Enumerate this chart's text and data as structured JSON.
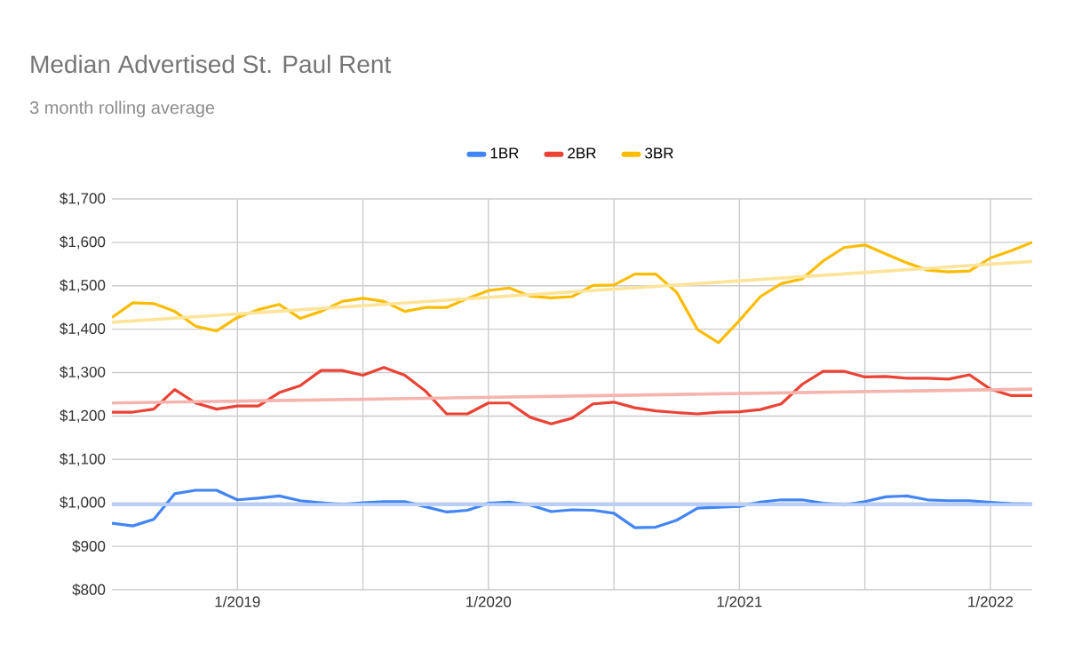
{
  "chart_data": {
    "type": "line",
    "title": "Median Advertised St. Paul Rent",
    "subtitle": "3 month rolling average",
    "x": [
      "2018-07",
      "2018-08",
      "2018-09",
      "2018-10",
      "2018-11",
      "2018-12",
      "2019-01",
      "2019-02",
      "2019-03",
      "2019-04",
      "2019-05",
      "2019-06",
      "2019-07",
      "2019-08",
      "2019-09",
      "2019-10",
      "2019-11",
      "2019-12",
      "2020-01",
      "2020-02",
      "2020-03",
      "2020-04",
      "2020-05",
      "2020-06",
      "2020-07",
      "2020-08",
      "2020-09",
      "2020-10",
      "2020-11",
      "2020-12",
      "2021-01",
      "2021-02",
      "2021-03",
      "2021-04",
      "2021-05",
      "2021-06",
      "2021-07",
      "2021-08",
      "2021-09",
      "2021-10",
      "2021-11",
      "2021-12",
      "2022-01",
      "2022-02",
      "2022-03"
    ],
    "series": [
      {
        "name": "1BR",
        "color": "#4285f4",
        "values": [
          953,
          947,
          962,
          1021,
          1029,
          1029,
          1007,
          1011,
          1016,
          1005,
          1000,
          996,
          1000,
          1003,
          1003,
          991,
          979,
          983,
          999,
          1002,
          995,
          980,
          984,
          983,
          976,
          943,
          944,
          960,
          988,
          990,
          992,
          1002,
          1007,
          1007,
          999,
          995,
          1003,
          1014,
          1016,
          1007,
          1005,
          1005,
          1001,
          998,
          997
        ]
      },
      {
        "name": "2BR",
        "color": "#ea4335",
        "values": [
          1209,
          1209,
          1216,
          1261,
          1230,
          1216,
          1223,
          1223,
          1254,
          1270,
          1305,
          1305,
          1294,
          1312,
          1294,
          1257,
          1205,
          1205,
          1230,
          1230,
          1197,
          1182,
          1195,
          1228,
          1232,
          1219,
          1212,
          1208,
          1205,
          1209,
          1210,
          1215,
          1228,
          1273,
          1303,
          1303,
          1290,
          1291,
          1287,
          1287,
          1285,
          1295,
          1262,
          1247,
          1247
        ]
      },
      {
        "name": "3BR",
        "color": "#fbbc04",
        "values": [
          1427,
          1461,
          1459,
          1441,
          1407,
          1396,
          1427,
          1445,
          1457,
          1425,
          1441,
          1464,
          1471,
          1464,
          1441,
          1450,
          1450,
          1471,
          1489,
          1495,
          1476,
          1472,
          1475,
          1501,
          1502,
          1527,
          1527,
          1485,
          1399,
          1369,
          1420,
          1475,
          1505,
          1516,
          1557,
          1588,
          1594,
          1573,
          1553,
          1536,
          1532,
          1534,
          1564,
          1581,
          1600
        ]
      },
      {
        "type": "line",
        "color": "#b7cffa",
        "x": [
          "2018-07",
          "2022-03"
        ],
        "values": [
          996,
          996
        ]
      },
      {
        "type": "line",
        "color": "#f6b4ae",
        "x": [
          "2018-07",
          "2022-03"
        ],
        "values": [
          1230,
          1262
        ]
      },
      {
        "type": "line",
        "color": "#fde49a",
        "x": [
          "2018-07",
          "2022-03"
        ],
        "values": [
          1416,
          1556
        ]
      }
    ],
    "xlim": [
      "2018-07",
      "2022-03"
    ],
    "xticks": [
      {
        "value": "2019-01",
        "label": "1/2019"
      },
      {
        "value": "2019-07",
        "label": null
      },
      {
        "value": "2020-01",
        "label": "1/2020"
      },
      {
        "value": "2020-07",
        "label": null
      },
      {
        "value": "2021-01",
        "label": "1/2021"
      },
      {
        "value": "2021-07",
        "label": null
      },
      {
        "value": "2022-01",
        "label": "1/2022"
      }
    ],
    "ylim": [
      800,
      1700
    ],
    "yticks": [
      {
        "value": 800,
        "label": "$800"
      },
      {
        "value": 900,
        "label": "$900"
      },
      {
        "value": 1000,
        "label": "$1,000"
      },
      {
        "value": 1100,
        "label": "$1,100"
      },
      {
        "value": 1200,
        "label": "$1,200"
      },
      {
        "value": 1300,
        "label": "$1,300"
      },
      {
        "value": 1400,
        "label": "$1,400"
      },
      {
        "value": 1500,
        "label": "$1,500"
      },
      {
        "value": 1600,
        "label": "$1,600"
      },
      {
        "value": 1700,
        "label": "$1,700"
      }
    ],
    "grid": true,
    "legend": "top",
    "marker": "none",
    "line_style": "solid"
  }
}
